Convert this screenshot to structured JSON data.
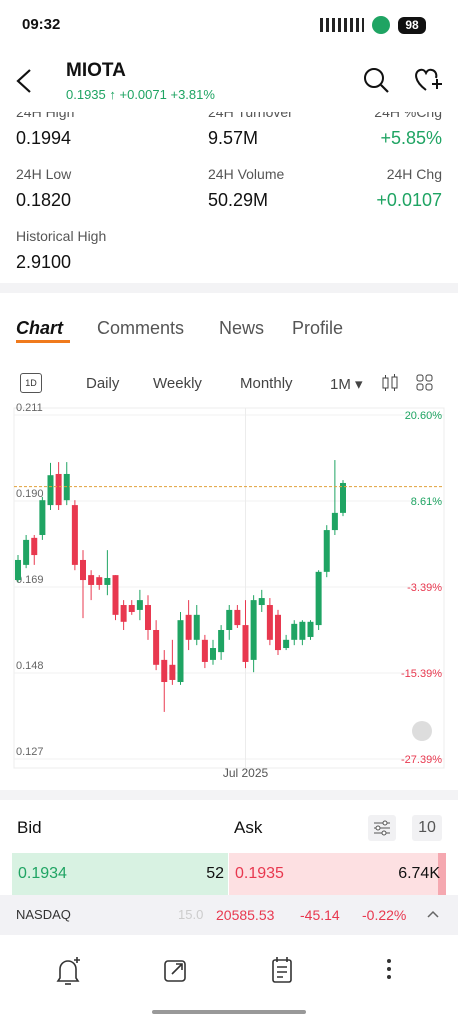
{
  "status": {
    "time": "09:32",
    "battery": "98"
  },
  "header": {
    "title": "MIOTA",
    "price": "0.1935",
    "change": "+0.0071",
    "change_pct": "+3.81%"
  },
  "stats": [
    {
      "label": "24H High",
      "value": "0.1994"
    },
    {
      "label": "24H Turnover",
      "value": "9.57M"
    },
    {
      "label": "24H %Chg",
      "value": "+5.85%"
    },
    {
      "label": "24H Low",
      "value": "0.1820"
    },
    {
      "label": "24H Volume",
      "value": "50.29M"
    },
    {
      "label": "24H Chg",
      "value": "+0.0107"
    },
    {
      "label": "Historical High",
      "value": "2.9100"
    }
  ],
  "tabs": [
    "Chart",
    "Comments",
    "News",
    "Profile"
  ],
  "timeframes": [
    "1D",
    "Daily",
    "Weekly",
    "Monthly",
    "1M"
  ],
  "chart": {
    "type": "candlestick",
    "up_color": "#1fa463",
    "down_color": "#e8384f",
    "categories": [
      null,
      null,
      null,
      null,
      null,
      null,
      null,
      null,
      null,
      null,
      null,
      null,
      null,
      null,
      null,
      null,
      null,
      null,
      null,
      null,
      null,
      null,
      null,
      null,
      null,
      null,
      null,
      null,
      "Jul 2025",
      null,
      null,
      null,
      null,
      null,
      null,
      null,
      null,
      null,
      null,
      null,
      null
    ],
    "candles": [
      [
        0.1707,
        0.1768,
        0.1702,
        0.1756
      ],
      [
        0.1744,
        0.1817,
        0.1736,
        0.1805
      ],
      [
        0.181,
        0.1817,
        0.1744,
        0.1768
      ],
      [
        0.1817,
        0.191,
        0.1805,
        0.1902
      ],
      [
        0.189,
        0.1993,
        0.1878,
        0.1963
      ],
      [
        0.1966,
        0.1995,
        0.1878,
        0.189
      ],
      [
        0.1902,
        0.1995,
        0.189,
        0.1966
      ],
      [
        0.189,
        0.1902,
        0.1731,
        0.1744
      ],
      [
        0.1756,
        0.178,
        0.1614,
        0.1707
      ],
      [
        0.1719,
        0.1731,
        0.1658,
        0.1695
      ],
      [
        0.1714,
        0.1719,
        0.1683,
        0.1695
      ],
      [
        0.1695,
        0.178,
        0.167,
        0.1712
      ],
      [
        0.1719,
        0.1719,
        0.1609,
        0.1622
      ],
      [
        0.1646,
        0.1658,
        0.1585,
        0.1605
      ],
      [
        0.1646,
        0.1658,
        0.1622,
        0.1629
      ],
      [
        0.1634,
        0.1683,
        0.1609,
        0.1658
      ],
      [
        0.1646,
        0.167,
        0.1561,
        0.1585
      ],
      [
        0.1585,
        0.1609,
        0.1487,
        0.15
      ],
      [
        0.1512,
        0.1536,
        0.1385,
        0.1458
      ],
      [
        0.15,
        0.1561,
        0.1451,
        0.1463
      ],
      [
        0.1458,
        0.1629,
        0.1451,
        0.1609
      ],
      [
        0.1622,
        0.1658,
        0.1536,
        0.1561
      ],
      [
        0.1561,
        0.1646,
        0.1548,
        0.1622
      ],
      [
        0.1561,
        0.1573,
        0.1492,
        0.1507
      ],
      [
        0.1512,
        0.1561,
        0.15,
        0.1541
      ],
      [
        0.1531,
        0.1597,
        0.1512,
        0.1585
      ],
      [
        0.1585,
        0.1646,
        0.1561,
        0.1634
      ],
      [
        0.1634,
        0.1646,
        0.159,
        0.1597
      ],
      [
        0.1597,
        0.1658,
        0.1492,
        0.1507
      ],
      [
        0.1512,
        0.167,
        0.1482,
        0.1658
      ],
      [
        0.1646,
        0.1683,
        0.1629,
        0.1663
      ],
      [
        0.1646,
        0.1663,
        0.1548,
        0.1561
      ],
      [
        0.1622,
        0.1634,
        0.1524,
        0.1536
      ],
      [
        0.1541,
        0.1573,
        0.1536,
        0.1561
      ],
      [
        0.1561,
        0.1609,
        0.1548,
        0.16
      ],
      [
        0.1561,
        0.1609,
        0.1548,
        0.1605
      ],
      [
        0.1568,
        0.1609,
        0.1561,
        0.1605
      ],
      [
        0.1597,
        0.1731,
        0.1585,
        0.1727
      ],
      [
        0.1727,
        0.1841,
        0.1714,
        0.1829
      ],
      [
        0.1829,
        0.2,
        0.1817,
        0.1871
      ],
      [
        0.1871,
        0.1951,
        0.1863,
        0.1944
      ]
    ],
    "price_line": 0.1935,
    "ylim": [
      0.127,
      0.211
    ],
    "yticks": [
      0.211,
      {
        "value": 0.19,
        "label": "0.190"
      },
      0.169,
      0.148,
      0.127
    ],
    "y2lim": [
      -27.39,
      20.6
    ],
    "y2ticks": [
      {
        "value": 20.6,
        "label": "20.60%"
      },
      {
        "value": 8.61,
        "label": "8.61%"
      },
      {
        "value": -3.39,
        "label": "-3.39%"
      },
      {
        "value": -15.39,
        "label": "-15.39%"
      },
      {
        "value": -27.39,
        "label": "-27.39%"
      }
    ]
  },
  "orderbook": {
    "bid_title": "Bid",
    "ask_title": "Ask",
    "depth": "10",
    "bid_price": "0.1934",
    "bid_size": "52",
    "ask_price": "0.1935",
    "ask_size": "6.74K"
  },
  "ticker": {
    "name": "NASDAQ",
    "faded": "15.0",
    "value": "20585.53",
    "change": "-45.14",
    "change_pct": "-0.22%"
  }
}
